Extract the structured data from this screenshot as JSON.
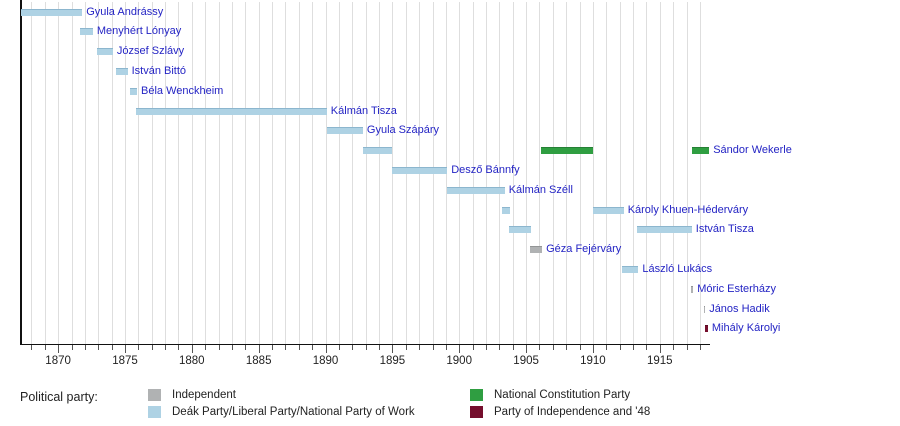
{
  "chart_data": {
    "type": "bar",
    "subtype": "gantt-timeline",
    "title": "",
    "xlabel": "",
    "ylabel": "",
    "axis": {
      "x_min": 1867,
      "x_max": 1919,
      "labeled_ticks": [
        1870,
        1875,
        1880,
        1885,
        1890,
        1895,
        1900,
        1905,
        1910,
        1915
      ],
      "minor_tick_interval": 1,
      "gridlines": "vertical, every year, light gray"
    },
    "palette": {
      "liberal": "#aed2e4",
      "independent": "#b0b2b3",
      "constitution": "#2f9e41",
      "independence48": "#750e2d"
    },
    "label_color": "#2424c4",
    "ministers": [
      {
        "name": "Gyula Andrássy",
        "terms": [
          {
            "start": 1867.2,
            "end": 1871.8,
            "party": "liberal"
          }
        ]
      },
      {
        "name": "Menyhért Lónyay",
        "terms": [
          {
            "start": 1871.6,
            "end": 1872.6,
            "party": "liberal"
          }
        ]
      },
      {
        "name": "József Szlávy",
        "terms": [
          {
            "start": 1872.9,
            "end": 1874.1,
            "party": "liberal"
          }
        ]
      },
      {
        "name": "István Bittó",
        "terms": [
          {
            "start": 1874.3,
            "end": 1875.2,
            "party": "liberal"
          }
        ]
      },
      {
        "name": "Béla Wenckheim",
        "terms": [
          {
            "start": 1875.4,
            "end": 1875.9,
            "party": "liberal"
          }
        ]
      },
      {
        "name": "Kálmán Tisza",
        "terms": [
          {
            "start": 1875.8,
            "end": 1890.1,
            "party": "liberal"
          }
        ]
      },
      {
        "name": "Gyula Szápáry",
        "terms": [
          {
            "start": 1890.1,
            "end": 1892.8,
            "party": "liberal"
          }
        ]
      },
      {
        "name": "Sándor Wekerle",
        "terms": [
          {
            "start": 1892.8,
            "end": 1895.0,
            "party": "liberal"
          },
          {
            "start": 1906.1,
            "end": 1910.0,
            "party": "constitution"
          },
          {
            "start": 1917.4,
            "end": 1918.7,
            "party": "constitution"
          }
        ]
      },
      {
        "name": "Desző Bánnfy",
        "terms": [
          {
            "start": 1895.0,
            "end": 1899.1,
            "party": "liberal"
          }
        ]
      },
      {
        "name": "Kálmán Széll",
        "terms": [
          {
            "start": 1899.1,
            "end": 1903.4,
            "party": "liberal"
          }
        ]
      },
      {
        "name": "Károly Khuen-Héderváry",
        "terms": [
          {
            "start": 1903.2,
            "end": 1903.8,
            "party": "liberal"
          },
          {
            "start": 1910.0,
            "end": 1912.3,
            "party": "liberal"
          }
        ]
      },
      {
        "name": "István Tisza",
        "terms": [
          {
            "start": 1903.7,
            "end": 1905.4,
            "party": "liberal"
          },
          {
            "start": 1913.3,
            "end": 1917.4,
            "party": "liberal"
          }
        ]
      },
      {
        "name": "Géza Fejérváry",
        "terms": [
          {
            "start": 1905.3,
            "end": 1906.2,
            "party": "independent"
          }
        ]
      },
      {
        "name": "László Lukács",
        "terms": [
          {
            "start": 1912.2,
            "end": 1913.4,
            "party": "liberal"
          }
        ]
      },
      {
        "name": "Móric Esterházy",
        "terms": [
          {
            "start": 1917.3,
            "end": 1917.5,
            "party": "independent"
          }
        ]
      },
      {
        "name": "János Hadik",
        "terms": [
          {
            "start": 1918.3,
            "end": 1918.4,
            "party": "independent"
          }
        ]
      },
      {
        "name": "Mihály Károlyi",
        "terms": [
          {
            "start": 1918.4,
            "end": 1918.6,
            "party": "independence48"
          }
        ]
      }
    ]
  },
  "legend": {
    "title": "Political party:",
    "items": [
      {
        "party": "independent",
        "label": "Independent"
      },
      {
        "party": "liberal",
        "label": "Deák Party/Liberal Party/National Party of Work"
      },
      {
        "party": "constitution",
        "label": "National Constitution Party"
      },
      {
        "party": "independence48",
        "label": "Party of Independence and '48"
      }
    ]
  }
}
